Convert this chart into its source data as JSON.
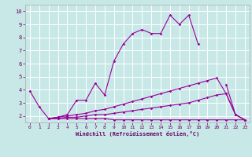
{
  "xlabel": "Windchill (Refroidissement éolien,°C)",
  "bg_color": "#c8e8e8",
  "grid_color": "#ffffff",
  "line_color": "#990099",
  "xlim": [
    -0.5,
    23.5
  ],
  "ylim": [
    1.5,
    10.5
  ],
  "xticks": [
    0,
    1,
    2,
    3,
    4,
    5,
    6,
    7,
    8,
    9,
    10,
    11,
    12,
    13,
    14,
    15,
    16,
    17,
    18,
    19,
    20,
    21,
    22,
    23
  ],
  "yticks": [
    2,
    3,
    4,
    5,
    6,
    7,
    8,
    9,
    10
  ],
  "lines": [
    {
      "x": [
        0,
        1,
        2,
        3,
        4,
        5,
        6,
        7,
        8,
        9,
        10,
        11,
        12,
        13,
        14,
        15,
        16,
        17,
        18,
        21,
        22,
        23
      ],
      "y": [
        3.9,
        2.7,
        1.8,
        1.9,
        2.1,
        3.2,
        3.2,
        4.5,
        3.6,
        6.2,
        7.5,
        8.3,
        8.6,
        8.3,
        8.3,
        9.7,
        9.0,
        9.7,
        7.5,
        4.4,
        2.1,
        1.7
      ],
      "break_after": 18
    },
    {
      "x": [
        2,
        3,
        4,
        5,
        6,
        7,
        8,
        9,
        10,
        11,
        12,
        13,
        14,
        15,
        16,
        17,
        18,
        19,
        20,
        21,
        22,
        23
      ],
      "y": [
        1.8,
        1.9,
        2.0,
        2.1,
        2.2,
        2.4,
        2.5,
        2.7,
        2.9,
        3.1,
        3.3,
        3.5,
        3.7,
        3.9,
        4.1,
        4.3,
        4.5,
        4.7,
        4.9,
        3.7,
        2.1,
        1.7
      ],
      "break_after": null
    },
    {
      "x": [
        2,
        3,
        4,
        5,
        6,
        7,
        8,
        9,
        10,
        11,
        12,
        13,
        14,
        15,
        16,
        17,
        18,
        19,
        20,
        21,
        22,
        23
      ],
      "y": [
        1.8,
        1.8,
        1.9,
        1.9,
        2.0,
        2.1,
        2.1,
        2.2,
        2.3,
        2.4,
        2.5,
        2.6,
        2.7,
        2.8,
        2.9,
        3.0,
        3.2,
        3.4,
        3.6,
        3.7,
        2.1,
        1.7
      ],
      "break_after": null
    },
    {
      "x": [
        2,
        3,
        4,
        5,
        6,
        7,
        8,
        9,
        10,
        11,
        12,
        13,
        14,
        15,
        16,
        17,
        18,
        19,
        20,
        21,
        22,
        23
      ],
      "y": [
        1.8,
        1.8,
        1.8,
        1.8,
        1.8,
        1.8,
        1.8,
        1.7,
        1.7,
        1.7,
        1.7,
        1.7,
        1.7,
        1.7,
        1.7,
        1.7,
        1.7,
        1.7,
        1.7,
        1.7,
        1.7,
        1.7
      ],
      "break_after": null
    }
  ]
}
